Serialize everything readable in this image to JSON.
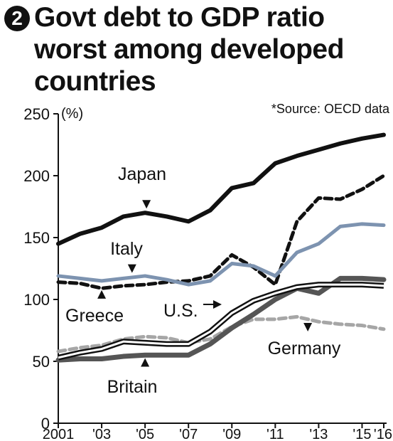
{
  "header": {
    "badge": "2",
    "title": "Govt debt to GDP ratio worst among developed countries"
  },
  "chart_data": {
    "type": "line",
    "title": "Govt debt to GDP ratio worst among developed countries",
    "source": "*Source: OECD data",
    "ylabel": "(%)",
    "xlabel": "",
    "ylim": [
      0,
      250
    ],
    "xlim": [
      2001,
      2016
    ],
    "yticks": [
      0,
      50,
      100,
      150,
      200,
      250
    ],
    "xticks": [
      {
        "value": 2001,
        "label": "2001"
      },
      {
        "value": 2003,
        "label": "'03"
      },
      {
        "value": 2005,
        "label": "'05"
      },
      {
        "value": 2007,
        "label": "'07"
      },
      {
        "value": 2009,
        "label": "'09"
      },
      {
        "value": 2011,
        "label": "'11"
      },
      {
        "value": 2013,
        "label": "'13"
      },
      {
        "value": 2015,
        "label": "'15"
      },
      {
        "value": 2016,
        "label": "'16"
      }
    ],
    "grid": false,
    "legend": "inline labels",
    "x": [
      2001,
      2002,
      2003,
      2004,
      2005,
      2006,
      2007,
      2008,
      2009,
      2010,
      2011,
      2012,
      2013,
      2014,
      2015,
      2016
    ],
    "series": [
      {
        "name": "Japan",
        "color": "#111111",
        "style": "solid",
        "values": [
          145,
          153,
          158,
          167,
          170,
          167,
          163,
          172,
          190,
          194,
          210,
          216,
          221,
          226,
          230,
          233
        ]
      },
      {
        "name": "Greece",
        "color": "#111111",
        "style": "dashed",
        "values": [
          114,
          113,
          109,
          111,
          112,
          114,
          115,
          119,
          136,
          126,
          112,
          163,
          182,
          181,
          189,
          200
        ]
      },
      {
        "name": "Italy",
        "color": "#7d93b0",
        "style": "solid",
        "values": [
          119,
          117,
          115,
          117,
          119,
          116,
          112,
          115,
          129,
          127,
          119,
          138,
          145,
          159,
          161,
          160
        ]
      },
      {
        "name": "U.S.",
        "color": "#111111",
        "style": "double",
        "values": [
          53,
          57,
          60,
          66,
          65,
          64,
          64,
          74,
          89,
          99,
          105,
          110,
          112,
          112,
          112,
          111
        ]
      },
      {
        "name": "Britain",
        "color": "#555555",
        "style": "solid",
        "values": [
          51,
          52,
          52,
          54,
          55,
          55,
          55,
          64,
          77,
          88,
          100,
          109,
          105,
          117,
          117,
          116
        ]
      },
      {
        "name": "Germany",
        "color": "#a6a6a6",
        "style": "dashed",
        "values": [
          58,
          61,
          63,
          68,
          70,
          69,
          65,
          68,
          78,
          84,
          84,
          86,
          82,
          80,
          79,
          76
        ]
      }
    ],
    "annotations": [
      {
        "text": "Japan",
        "series": "Japan"
      },
      {
        "text": "Italy",
        "series": "Italy"
      },
      {
        "text": "Greece",
        "series": "Greece"
      },
      {
        "text": "U.S.",
        "series": "U.S."
      },
      {
        "text": "Germany",
        "series": "Germany"
      },
      {
        "text": "Britain",
        "series": "Britain"
      }
    ]
  }
}
